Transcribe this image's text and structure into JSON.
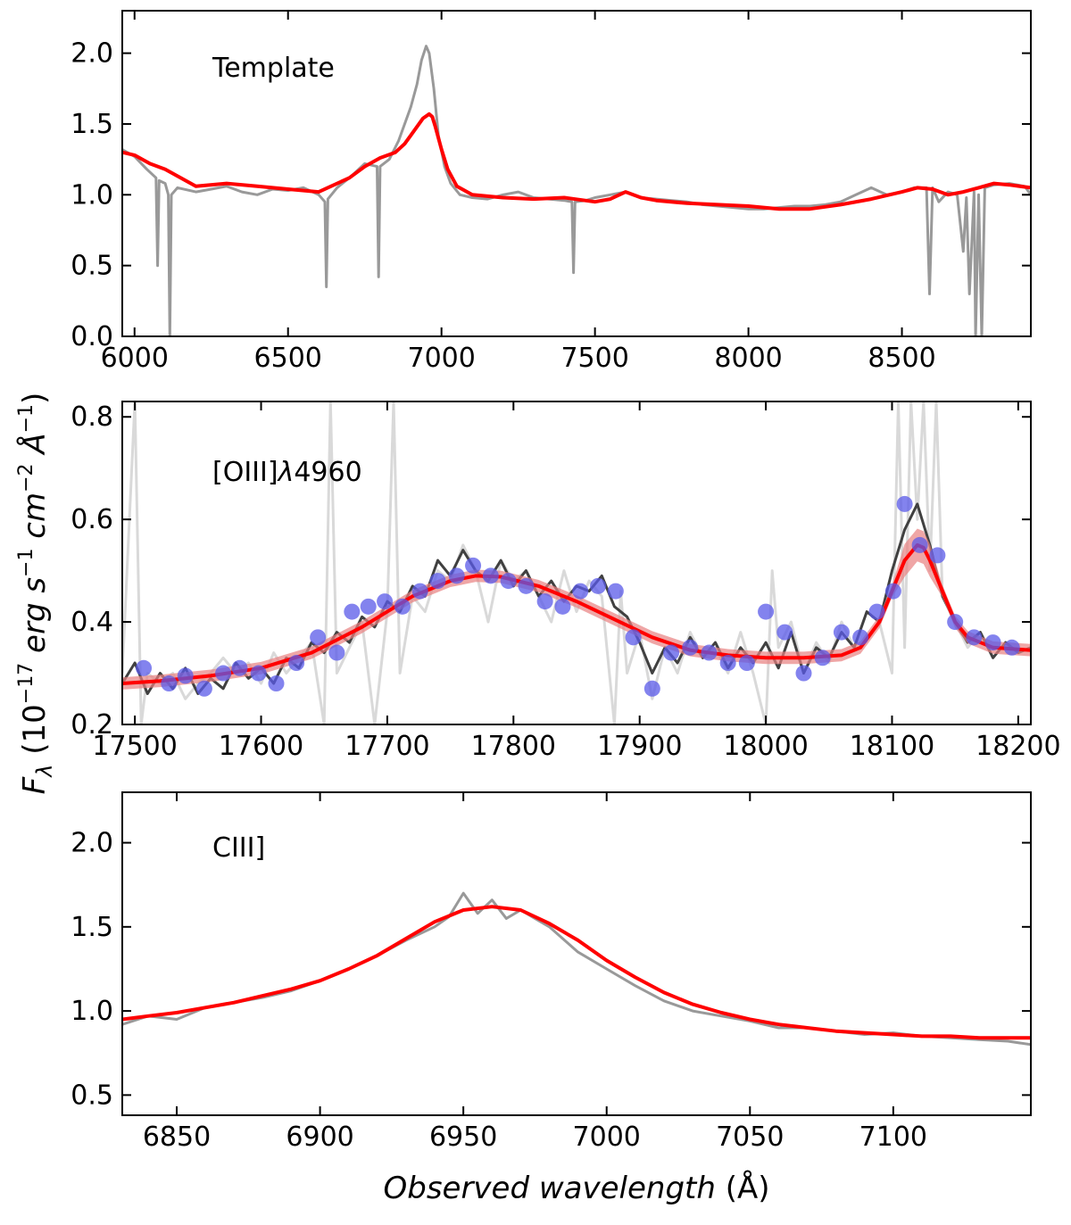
{
  "figure": {
    "ylabel_parts": {
      "f": "F",
      "sub": "λ",
      "open": " (10",
      "exp1": "−17",
      "unit1": " erg s",
      "exp2": "−1",
      "unit2": " cm",
      "exp3": "−2",
      "unit3": " Å",
      "exp4": "−1",
      "close": ")"
    },
    "xlabel_italic": "Observed wavelength",
    "xlabel_unit": " (Å)"
  },
  "colors": {
    "data_gray": "#999999",
    "data_lightgray": "#d9d9d9",
    "data_dark": "#404040",
    "model_red": "#ff0000",
    "band_red": "#e88080",
    "points_blue": "#5a5ae8"
  },
  "chart_data": [
    {
      "type": "line",
      "panel": "top",
      "label": "Template",
      "xlim": [
        5960,
        8920
      ],
      "ylim": [
        0.0,
        2.3
      ],
      "xticks": [
        6000,
        6500,
        7000,
        7500,
        8000,
        8500
      ],
      "xtick_labels": [
        "6000",
        "6500",
        "7000",
        "7500",
        "8000",
        "8500"
      ],
      "yticks": [
        0.0,
        0.5,
        1.0,
        1.5,
        2.0
      ],
      "ytick_labels": [
        "0.0",
        "0.5",
        "1.0",
        "1.5",
        "2.0"
      ],
      "series": [
        {
          "name": "observed spectrum",
          "color": "gray",
          "x": [
            5960,
            6000,
            6040,
            6070,
            6075,
            6080,
            6100,
            6110,
            6115,
            6120,
            6140,
            6200,
            6250,
            6300,
            6350,
            6400,
            6450,
            6500,
            6550,
            6600,
            6620,
            6625,
            6630,
            6660,
            6700,
            6750,
            6790,
            6795,
            6800,
            6830,
            6860,
            6880,
            6900,
            6920,
            6935,
            6950,
            6960,
            6975,
            6990,
            7010,
            7030,
            7060,
            7100,
            7150,
            7200,
            7250,
            7300,
            7350,
            7400,
            7425,
            7430,
            7435,
            7470,
            7500,
            7550,
            7600,
            7650,
            7700,
            7750,
            7800,
            7850,
            7900,
            7950,
            8000,
            8050,
            8100,
            8150,
            8200,
            8250,
            8300,
            8350,
            8400,
            8450,
            8500,
            8540,
            8580,
            8590,
            8600,
            8620,
            8650,
            8680,
            8700,
            8710,
            8720,
            8735,
            8740,
            8750,
            8760,
            8770,
            8800,
            8850,
            8900,
            8920
          ],
          "y": [
            1.32,
            1.27,
            1.18,
            1.12,
            0.5,
            1.1,
            1.08,
            1.0,
            0.0,
            1.0,
            1.05,
            1.02,
            1.04,
            1.06,
            1.02,
            1.0,
            1.04,
            1.03,
            1.05,
            1.0,
            0.95,
            0.35,
            0.97,
            1.05,
            1.12,
            1.22,
            1.2,
            0.42,
            1.2,
            1.25,
            1.38,
            1.5,
            1.62,
            1.78,
            1.95,
            2.05,
            2.0,
            1.75,
            1.42,
            1.2,
            1.08,
            1.0,
            0.98,
            0.97,
            1.0,
            1.02,
            0.98,
            0.97,
            0.96,
            0.95,
            0.45,
            0.95,
            0.96,
            0.98,
            1.0,
            1.02,
            0.98,
            0.97,
            0.96,
            0.95,
            0.93,
            0.92,
            0.91,
            0.9,
            0.9,
            0.91,
            0.92,
            0.92,
            0.93,
            0.95,
            1.0,
            1.05,
            1.0,
            1.02,
            1.05,
            1.05,
            0.3,
            1.05,
            0.95,
            1.02,
            1.0,
            0.6,
            0.98,
            0.3,
            1.02,
            0.0,
            1.0,
            0.0,
            1.05,
            1.07,
            1.08,
            1.06,
            1.0
          ]
        },
        {
          "name": "template model",
          "color": "red",
          "x": [
            5960,
            6000,
            6050,
            6100,
            6150,
            6200,
            6300,
            6400,
            6500,
            6600,
            6700,
            6750,
            6800,
            6850,
            6880,
            6900,
            6920,
            6940,
            6960,
            6970,
            6980,
            7000,
            7020,
            7050,
            7100,
            7200,
            7300,
            7400,
            7500,
            7550,
            7600,
            7650,
            7700,
            7800,
            7900,
            8000,
            8100,
            8200,
            8300,
            8400,
            8500,
            8550,
            8600,
            8650,
            8700,
            8750,
            8800,
            8850,
            8920
          ],
          "y": [
            1.3,
            1.28,
            1.22,
            1.18,
            1.12,
            1.06,
            1.08,
            1.06,
            1.04,
            1.02,
            1.12,
            1.2,
            1.26,
            1.3,
            1.36,
            1.42,
            1.48,
            1.54,
            1.57,
            1.55,
            1.48,
            1.32,
            1.18,
            1.06,
            1.0,
            0.98,
            0.97,
            0.98,
            0.95,
            0.97,
            1.02,
            0.98,
            0.96,
            0.94,
            0.93,
            0.92,
            0.9,
            0.9,
            0.93,
            0.97,
            1.02,
            1.05,
            1.04,
            1.0,
            1.02,
            1.05,
            1.08,
            1.07,
            1.05
          ]
        }
      ]
    },
    {
      "type": "line",
      "panel": "middle",
      "label": "[OIII]λ4960",
      "label_parts": {
        "pre": "[OIII]",
        "lambda": "λ",
        "post": "4960"
      },
      "xlim": [
        17490,
        18210
      ],
      "ylim": [
        0.2,
        0.83
      ],
      "xticks": [
        17500,
        17600,
        17700,
        17800,
        17900,
        18000,
        18100,
        18200
      ],
      "xtick_labels": [
        "17500",
        "17600",
        "17700",
        "17800",
        "17900",
        "18000",
        "18100",
        "18200"
      ],
      "yticks": [
        0.2,
        0.4,
        0.6,
        0.8
      ],
      "ytick_labels": [
        "0.2",
        "0.4",
        "0.6",
        "0.8"
      ],
      "series": [
        {
          "name": "raw spectrum",
          "color": "lightgray",
          "x": [
            17490,
            17500,
            17505,
            17510,
            17520,
            17530,
            17540,
            17550,
            17560,
            17570,
            17580,
            17590,
            17600,
            17610,
            17620,
            17630,
            17640,
            17650,
            17655,
            17660,
            17670,
            17680,
            17690,
            17700,
            17705,
            17710,
            17720,
            17730,
            17740,
            17750,
            17760,
            17770,
            17780,
            17790,
            17800,
            17810,
            17820,
            17830,
            17840,
            17850,
            17860,
            17870,
            17880,
            17885,
            17890,
            17900,
            17910,
            17920,
            17930,
            17940,
            17950,
            17960,
            17970,
            17980,
            17990,
            18000,
            18005,
            18010,
            18020,
            18030,
            18040,
            18050,
            18060,
            18070,
            18080,
            18090,
            18100,
            18105,
            18110,
            18115,
            18120,
            18125,
            18130,
            18135,
            18140,
            18150,
            18160,
            18170,
            18180,
            18190,
            18200,
            18210
          ],
          "y": [
            0.3,
            0.83,
            0.2,
            0.3,
            0.28,
            0.3,
            0.25,
            0.28,
            0.3,
            0.33,
            0.3,
            0.32,
            0.28,
            0.34,
            0.3,
            0.33,
            0.36,
            0.2,
            0.83,
            0.3,
            0.35,
            0.4,
            0.2,
            0.42,
            0.83,
            0.3,
            0.45,
            0.42,
            0.5,
            0.48,
            0.55,
            0.5,
            0.4,
            0.52,
            0.48,
            0.5,
            0.45,
            0.4,
            0.5,
            0.42,
            0.48,
            0.45,
            0.2,
            0.46,
            0.3,
            0.38,
            0.25,
            0.35,
            0.3,
            0.38,
            0.33,
            0.35,
            0.3,
            0.38,
            0.3,
            0.2,
            0.5,
            0.35,
            0.4,
            0.3,
            0.36,
            0.32,
            0.4,
            0.35,
            0.42,
            0.4,
            0.3,
            0.83,
            0.35,
            0.83,
            0.6,
            0.83,
            0.5,
            0.83,
            0.45,
            0.4,
            0.35,
            0.38,
            0.33,
            0.36,
            0.34,
            0.35
          ]
        },
        {
          "name": "binned spectrum",
          "color": "dark",
          "x": [
            17490,
            17500,
            17510,
            17520,
            17530,
            17540,
            17550,
            17560,
            17570,
            17580,
            17590,
            17600,
            17610,
            17620,
            17630,
            17640,
            17650,
            17660,
            17670,
            17680,
            17690,
            17700,
            17710,
            17720,
            17730,
            17740,
            17750,
            17760,
            17770,
            17780,
            17790,
            17800,
            17810,
            17820,
            17830,
            17840,
            17850,
            17860,
            17870,
            17880,
            17890,
            17900,
            17910,
            17920,
            17930,
            17940,
            17950,
            17960,
            17970,
            17980,
            17990,
            18000,
            18010,
            18020,
            18030,
            18040,
            18050,
            18060,
            18070,
            18080,
            18090,
            18100,
            18110,
            18120,
            18130,
            18140,
            18150,
            18160,
            18170,
            18180,
            18190,
            18200,
            18210
          ],
          "y": [
            0.28,
            0.32,
            0.26,
            0.3,
            0.27,
            0.31,
            0.26,
            0.29,
            0.27,
            0.32,
            0.29,
            0.31,
            0.28,
            0.33,
            0.31,
            0.36,
            0.34,
            0.38,
            0.36,
            0.41,
            0.39,
            0.44,
            0.42,
            0.47,
            0.45,
            0.52,
            0.49,
            0.54,
            0.5,
            0.48,
            0.52,
            0.47,
            0.5,
            0.45,
            0.48,
            0.44,
            0.47,
            0.46,
            0.49,
            0.43,
            0.41,
            0.36,
            0.3,
            0.35,
            0.32,
            0.37,
            0.33,
            0.36,
            0.31,
            0.35,
            0.32,
            0.36,
            0.31,
            0.38,
            0.3,
            0.35,
            0.33,
            0.38,
            0.35,
            0.42,
            0.4,
            0.5,
            0.58,
            0.63,
            0.55,
            0.45,
            0.4,
            0.36,
            0.38,
            0.33,
            0.36,
            0.34,
            0.35
          ]
        },
        {
          "name": "model fit",
          "color": "red",
          "x": [
            17490,
            17520,
            17560,
            17600,
            17640,
            17680,
            17720,
            17750,
            17770,
            17790,
            17820,
            17850,
            17880,
            17910,
            17940,
            17970,
            18000,
            18030,
            18060,
            18075,
            18090,
            18100,
            18110,
            18120,
            18125,
            18130,
            18140,
            18150,
            18160,
            18180,
            18210
          ],
          "y": [
            0.28,
            0.285,
            0.295,
            0.31,
            0.34,
            0.39,
            0.45,
            0.48,
            0.49,
            0.488,
            0.47,
            0.44,
            0.405,
            0.37,
            0.345,
            0.335,
            0.33,
            0.33,
            0.335,
            0.35,
            0.4,
            0.46,
            0.52,
            0.55,
            0.545,
            0.52,
            0.46,
            0.4,
            0.37,
            0.35,
            0.345
          ]
        },
        {
          "name": "binned points",
          "color": "blue",
          "x": [
            17507,
            17527,
            17540,
            17555,
            17570,
            17583,
            17598,
            17612,
            17628,
            17645,
            17660,
            17672,
            17685,
            17698,
            17712,
            17726,
            17740,
            17755,
            17768,
            17782,
            17796,
            17810,
            17825,
            17839,
            17853,
            17867,
            17881,
            17895,
            17910,
            17925,
            17940,
            17955,
            17970,
            17985,
            18000,
            18015,
            18030,
            18045,
            18060,
            18075,
            18088,
            18101,
            18110,
            18122,
            18136,
            18150,
            18165,
            18180,
            18195
          ],
          "y": [
            0.31,
            0.28,
            0.295,
            0.27,
            0.3,
            0.31,
            0.3,
            0.28,
            0.32,
            0.37,
            0.34,
            0.42,
            0.43,
            0.44,
            0.43,
            0.46,
            0.48,
            0.49,
            0.51,
            0.49,
            0.48,
            0.47,
            0.44,
            0.43,
            0.46,
            0.47,
            0.46,
            0.37,
            0.27,
            0.34,
            0.35,
            0.34,
            0.32,
            0.32,
            0.42,
            0.38,
            0.3,
            0.33,
            0.38,
            0.37,
            0.42,
            0.46,
            0.63,
            0.55,
            0.53,
            0.4,
            0.37,
            0.36,
            0.35
          ]
        }
      ]
    },
    {
      "type": "line",
      "panel": "bottom",
      "label": "CIII]",
      "xlim": [
        6831,
        7148
      ],
      "ylim": [
        0.38,
        2.3
      ],
      "xticks": [
        6850,
        6900,
        6950,
        7000,
        7050,
        7100
      ],
      "xtick_labels": [
        "6850",
        "6900",
        "6950",
        "7000",
        "7050",
        "7100"
      ],
      "yticks": [
        0.5,
        1.0,
        1.5,
        2.0
      ],
      "ytick_labels": [
        "0.5",
        "1.0",
        "1.5",
        "2.0"
      ],
      "series": [
        {
          "name": "observed spectrum",
          "color": "gray",
          "x": [
            6831,
            6840,
            6850,
            6860,
            6870,
            6880,
            6890,
            6900,
            6910,
            6920,
            6930,
            6940,
            6945,
            6950,
            6955,
            6960,
            6965,
            6970,
            6975,
            6980,
            6990,
            7000,
            7010,
            7020,
            7030,
            7040,
            7050,
            7060,
            7070,
            7080,
            7090,
            7100,
            7110,
            7120,
            7130,
            7140,
            7148
          ],
          "y": [
            0.92,
            0.97,
            0.95,
            1.02,
            1.05,
            1.08,
            1.12,
            1.18,
            1.25,
            1.33,
            1.42,
            1.5,
            1.56,
            1.7,
            1.58,
            1.66,
            1.55,
            1.6,
            1.55,
            1.5,
            1.35,
            1.25,
            1.15,
            1.06,
            1.0,
            0.97,
            0.94,
            0.9,
            0.9,
            0.88,
            0.86,
            0.87,
            0.85,
            0.84,
            0.83,
            0.82,
            0.8
          ]
        },
        {
          "name": "model fit",
          "color": "red",
          "x": [
            6831,
            6840,
            6850,
            6860,
            6870,
            6880,
            6890,
            6900,
            6910,
            6920,
            6930,
            6940,
            6950,
            6960,
            6970,
            6980,
            6990,
            7000,
            7010,
            7020,
            7030,
            7040,
            7050,
            7060,
            7070,
            7080,
            7090,
            7100,
            7110,
            7120,
            7130,
            7140,
            7148
          ],
          "y": [
            0.95,
            0.97,
            0.99,
            1.02,
            1.05,
            1.09,
            1.13,
            1.18,
            1.25,
            1.33,
            1.43,
            1.53,
            1.6,
            1.62,
            1.6,
            1.52,
            1.42,
            1.3,
            1.2,
            1.11,
            1.04,
            0.99,
            0.95,
            0.92,
            0.9,
            0.88,
            0.87,
            0.86,
            0.85,
            0.85,
            0.84,
            0.84,
            0.84
          ]
        }
      ]
    }
  ]
}
